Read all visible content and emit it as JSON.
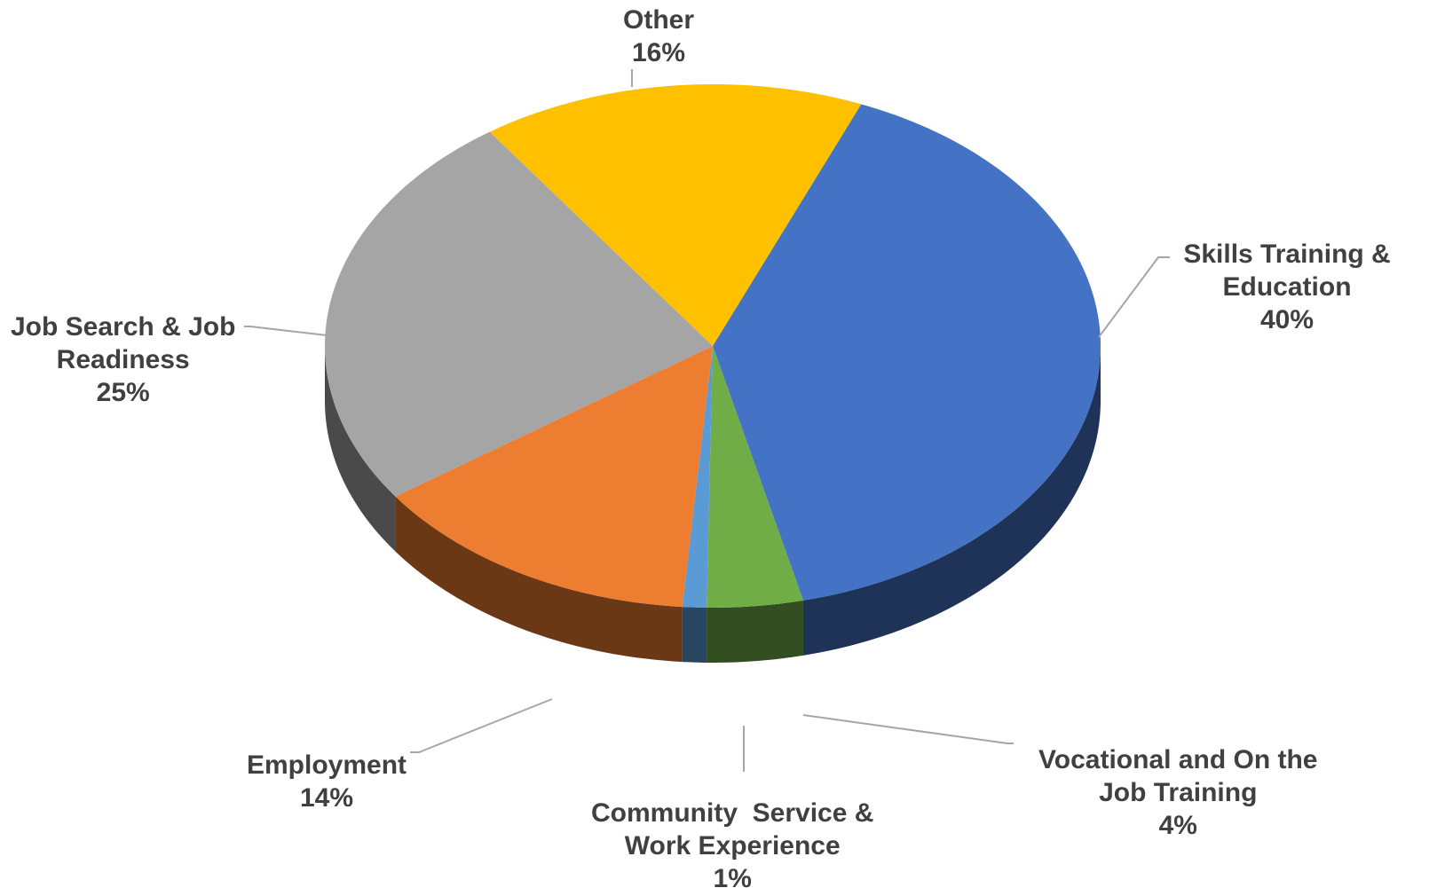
{
  "chart_data": {
    "type": "pie",
    "title": "",
    "slices": [
      {
        "label_lines": [
          "Skills Training &",
          "Education"
        ],
        "percent_label": "40%",
        "value": 40,
        "color": "#4472C4"
      },
      {
        "label_lines": [
          "Vocational and On the",
          "Job Training"
        ],
        "percent_label": "4%",
        "value": 4,
        "color": "#70AD47"
      },
      {
        "label_lines": [
          "Community  Service &",
          "Work Experience"
        ],
        "percent_label": "1%",
        "value": 1,
        "color": "#5B9BD5"
      },
      {
        "label_lines": [
          "Employment"
        ],
        "percent_label": "14%",
        "value": 14,
        "color": "#ED7D31"
      },
      {
        "label_lines": [
          "Job Search & Job",
          "Readiness"
        ],
        "percent_label": "25%",
        "value": 25,
        "color": "#A5A5A5"
      },
      {
        "label_lines": [
          "Other"
        ],
        "percent_label": "16%",
        "value": 16,
        "color": "#FFC000"
      }
    ],
    "legend": "none",
    "three_d": true
  }
}
